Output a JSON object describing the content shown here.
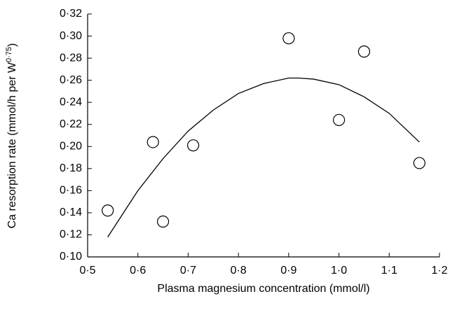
{
  "chart_data": {
    "type": "scatter",
    "xlabel": "Plasma magnesium concentration (mmol/l)",
    "ylabel": {
      "text": "Ca resorption rate (mmol/h per W",
      "superscript": "0·75",
      "suffix": ")"
    },
    "series": [
      {
        "type": "scatter",
        "color": "#000000",
        "marker": "open-circle",
        "x": [
          0.54,
          0.63,
          0.65,
          0.71,
          0.9,
          1.0,
          1.05,
          1.16
        ],
        "values": [
          0.142,
          0.204,
          0.132,
          0.201,
          0.298,
          0.224,
          0.286,
          0.185
        ]
      },
      {
        "type": "line",
        "color": "#000000",
        "x": [
          0.54,
          0.6,
          0.65,
          0.7,
          0.75,
          0.8,
          0.85,
          0.9,
          0.92,
          0.95,
          1.0,
          1.05,
          1.1,
          1.16
        ],
        "values": [
          0.118,
          0.16,
          0.189,
          0.214,
          0.233,
          0.248,
          0.257,
          0.262,
          0.262,
          0.261,
          0.256,
          0.245,
          0.23,
          0.204
        ]
      }
    ],
    "xlim": [
      0.5,
      1.2
    ],
    "xticks": [
      {
        "value": 0.5,
        "label": "0·5"
      },
      {
        "value": 0.6,
        "label": "0·6"
      },
      {
        "value": 0.7,
        "label": "0·7"
      },
      {
        "value": 0.8,
        "label": "0·8"
      },
      {
        "value": 0.9,
        "label": "0·9"
      },
      {
        "value": 1.0,
        "label": "1·0"
      },
      {
        "value": 1.1,
        "label": "1·1"
      },
      {
        "value": 1.2,
        "label": "1·2"
      }
    ],
    "ylim": [
      0.1,
      0.32
    ],
    "yticks": [
      {
        "value": 0.1,
        "label": "0·10"
      },
      {
        "value": 0.12,
        "label": "0·12"
      },
      {
        "value": 0.14,
        "label": "0·14"
      },
      {
        "value": 0.16,
        "label": "0·16"
      },
      {
        "value": 0.18,
        "label": "0·18"
      },
      {
        "value": 0.2,
        "label": "0·20"
      },
      {
        "value": 0.22,
        "label": "0·22"
      },
      {
        "value": 0.24,
        "label": "0·24"
      },
      {
        "value": 0.26,
        "label": "0·26"
      },
      {
        "value": 0.28,
        "label": "0·28"
      },
      {
        "value": 0.3,
        "label": "0·30"
      },
      {
        "value": 0.32,
        "label": "0·32"
      }
    ],
    "grid": false
  }
}
